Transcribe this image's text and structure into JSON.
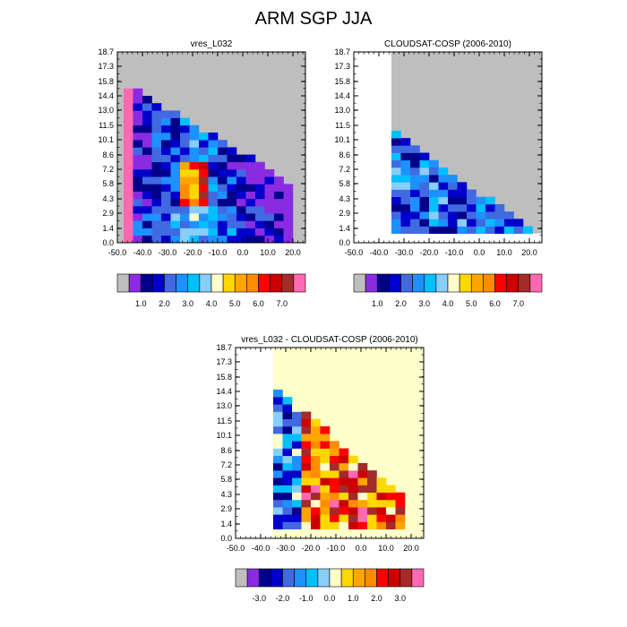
{
  "figure": {
    "title": "ARM SGP JJA"
  },
  "colors": {
    "missing": "#bebebe",
    "palette": [
      "#bebebe",
      "#8a2be2",
      "#00008b",
      "#0000cd",
      "#4169e1",
      "#1e90ff",
      "#00bfff",
      "#87cefa",
      "#ffffcc",
      "#ffd700",
      "#ffa500",
      "#ff8c00",
      "#ff0000",
      "#cc0000",
      "#a52a2a",
      "#ff69b4"
    ],
    "diff_background": "#ffffcc"
  },
  "chart_data": [
    {
      "type": "heatmap",
      "title": "vres_L032",
      "x_ticks": [
        "-50.0",
        "-40.0",
        "-30.0",
        "-20.0",
        "-10.0",
        "0.0",
        "10.0",
        "20.0"
      ],
      "y_ticks": [
        "0.0",
        "1.4",
        "2.9",
        "4.3",
        "5.8",
        "7.2",
        "8.6",
        "10.1",
        "11.5",
        "13.0",
        "14.4",
        "15.8",
        "17.3",
        "18.7"
      ],
      "xlim": [
        -50,
        25
      ],
      "ylim": [
        0,
        18.7
      ],
      "colorbar_labels": [
        "1.0",
        "2.0",
        "3.0",
        "4.0",
        "5.0",
        "6.0",
        "7.0"
      ],
      "background": "#bebebe"
    },
    {
      "type": "heatmap",
      "title": "CLOUDSAT-COSP (2006-2010)",
      "x_ticks": [
        "-50.0",
        "-40.0",
        "-30.0",
        "-20.0",
        "-10.0",
        "0.0",
        "10.0",
        "20.0"
      ],
      "y_ticks": [
        "0.0",
        "1.4",
        "2.9",
        "4.3",
        "5.8",
        "7.2",
        "8.6",
        "10.1",
        "11.5",
        "13.0",
        "14.4",
        "15.8",
        "17.3",
        "18.7"
      ],
      "xlim": [
        -50,
        25
      ],
      "ylim": [
        0,
        18.7
      ],
      "colorbar_labels": [
        "1.0",
        "2.0",
        "3.0",
        "4.0",
        "5.0",
        "6.0",
        "7.0"
      ],
      "background": "#bebebe"
    },
    {
      "type": "heatmap",
      "title": "vres_L032 - CLOUDSAT-COSP (2006-2010)",
      "x_ticks": [
        "-50.0",
        "-40.0",
        "-30.0",
        "-20.0",
        "-10.0",
        "0.0",
        "10.0",
        "20.0"
      ],
      "y_ticks": [
        "0.0",
        "1.4",
        "2.9",
        "4.3",
        "5.8",
        "7.2",
        "8.6",
        "10.1",
        "11.5",
        "13.0",
        "14.4",
        "15.8",
        "17.3",
        "18.7"
      ],
      "xlim": [
        -50,
        25
      ],
      "ylim": [
        0,
        18.7
      ],
      "colorbar_labels": [
        "-3.0",
        "-2.0",
        "-1.0",
        "0.0",
        "1.0",
        "2.0",
        "3.0"
      ],
      "background": "#ffffcc"
    }
  ]
}
